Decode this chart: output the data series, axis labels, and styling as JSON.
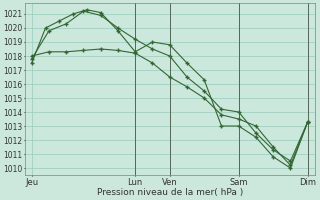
{
  "background_color": "#cce8dd",
  "grid_color": "#99ccbb",
  "line_color": "#336633",
  "marker_color": "#336633",
  "xlabel": "Pression niveau de la mer( hPa )",
  "ylim": [
    1009.5,
    1021.8
  ],
  "yticks": [
    1010,
    1011,
    1012,
    1013,
    1014,
    1015,
    1016,
    1017,
    1018,
    1019,
    1020,
    1021
  ],
  "xtick_labels": [
    "Jeu",
    "Lun",
    "Ven",
    "Sam",
    "Dim"
  ],
  "xtick_positions": [
    0,
    3,
    4,
    6,
    8
  ],
  "vline_positions": [
    3,
    4,
    6,
    8
  ],
  "xlim": [
    -0.2,
    8.2
  ],
  "series1_x": [
    0,
    0.4,
    0.8,
    1.2,
    1.6,
    2.0,
    2.5,
    3.0,
    3.5,
    4.0,
    4.5,
    5.0,
    5.5,
    6.0,
    6.5,
    7.0,
    7.5,
    8.0
  ],
  "series1_y": [
    1017.5,
    1020.0,
    1020.5,
    1021.0,
    1021.3,
    1021.1,
    1019.8,
    1018.3,
    1019.0,
    1018.8,
    1017.5,
    1016.3,
    1013.0,
    1013.0,
    1012.2,
    1010.8,
    1010.0,
    1013.3
  ],
  "series2_x": [
    0,
    0.5,
    1.0,
    1.5,
    2.0,
    2.5,
    3.0,
    3.5,
    4.0,
    4.5,
    5.0,
    5.5,
    6.0,
    6.5,
    7.0,
    7.5,
    8.0
  ],
  "series2_y": [
    1017.8,
    1019.8,
    1020.3,
    1021.2,
    1020.9,
    1020.0,
    1019.2,
    1018.5,
    1018.0,
    1016.5,
    1015.5,
    1014.2,
    1014.0,
    1012.5,
    1011.3,
    1010.5,
    1013.3
  ],
  "series3_x": [
    0,
    0.5,
    1.0,
    1.5,
    2.0,
    2.5,
    3.0,
    3.5,
    4.0,
    4.5,
    5.0,
    5.5,
    6.0,
    6.5,
    7.0,
    7.5,
    8.0
  ],
  "series3_y": [
    1018.0,
    1018.3,
    1018.3,
    1018.4,
    1018.5,
    1018.4,
    1018.2,
    1017.5,
    1016.5,
    1015.8,
    1015.0,
    1013.8,
    1013.5,
    1013.0,
    1011.5,
    1010.2,
    1013.3
  ],
  "figsize": [
    3.2,
    2.0
  ],
  "dpi": 100
}
